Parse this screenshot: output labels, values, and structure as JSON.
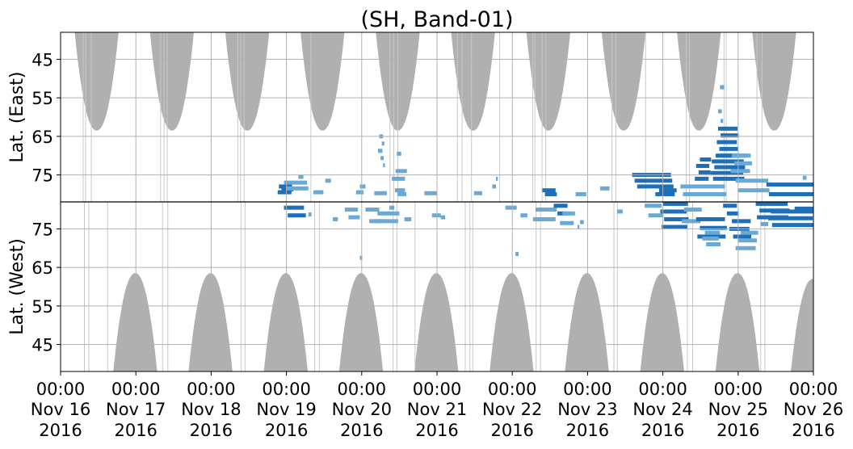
{
  "chart_data": {
    "type": "heatmap",
    "title": "(SH, Band-01)",
    "x_ticks": [
      {
        "time": "00:00",
        "date": "Nov 16",
        "year": "2016"
      },
      {
        "time": "00:00",
        "date": "Nov 17",
        "year": "2016"
      },
      {
        "time": "00:00",
        "date": "Nov 18",
        "year": "2016"
      },
      {
        "time": "00:00",
        "date": "Nov 19",
        "year": "2016"
      },
      {
        "time": "00:00",
        "date": "Nov 20",
        "year": "2016"
      },
      {
        "time": "00:00",
        "date": "Nov 21",
        "year": "2016"
      },
      {
        "time": "00:00",
        "date": "Nov 22",
        "year": "2016"
      },
      {
        "time": "00:00",
        "date": "Nov 23",
        "year": "2016"
      },
      {
        "time": "00:00",
        "date": "Nov 24",
        "year": "2016"
      },
      {
        "time": "00:00",
        "date": "Nov 25",
        "year": "2016"
      },
      {
        "time": "00:00",
        "date": "Nov 26",
        "year": "2016"
      }
    ],
    "xlim": [
      "2016-11-16 00:00",
      "2016-11-26 00:00"
    ],
    "east_panel": {
      "ylabel": "Lat. (East)",
      "yticks": [
        45,
        55,
        65,
        75
      ],
      "ylim": [
        38,
        82
      ]
    },
    "west_panel": {
      "ylabel": "Lat. (West)",
      "yticks": [
        75,
        65,
        55,
        45
      ],
      "ylim": [
        38,
        82
      ]
    },
    "night_shading_color": "#b0b0b0",
    "data_color_light": "#6aa8d6",
    "data_color_dark": "#1f6fb8",
    "gaps_east_hours": [
      7.2,
      8.0,
      9.8,
      31.9,
      33.0,
      34.0,
      56.5,
      57.4,
      58.5,
      79.8,
      105.0,
      106.2,
      107.5,
      126.5,
      128.0,
      131.0,
      140.0,
      150.5,
      151.2,
      153.5,
      154.7,
      175.8,
      177.0,
      186.5,
      199.5,
      200.5,
      211.5,
      212.2,
      222.0,
      223.6
    ],
    "gaps_west_hours": [
      7.6,
      9.0,
      15.0,
      32.5,
      34.2,
      57.5,
      58.8,
      81.0,
      82.5,
      106.0,
      107.2,
      113.0,
      129.0,
      130.5,
      131.4,
      151.6,
      153.0,
      176.4,
      177.5,
      199.8,
      201.5,
      223.2,
      224.5
    ],
    "night_east_cycles": [
      {
        "center_hour": 11.5,
        "halfwidth_hours": 7.0,
        "lat_min": 63.5
      },
      {
        "center_hour": 35.5,
        "halfwidth_hours": 7.0,
        "lat_min": 63.5
      },
      {
        "center_hour": 59.5,
        "halfwidth_hours": 7.0,
        "lat_min": 63.5
      },
      {
        "center_hour": 83.5,
        "halfwidth_hours": 7.0,
        "lat_min": 63.5
      },
      {
        "center_hour": 107.5,
        "halfwidth_hours": 7.0,
        "lat_min": 63.5
      },
      {
        "center_hour": 131.5,
        "halfwidth_hours": 7.0,
        "lat_min": 63.5
      },
      {
        "center_hour": 155.5,
        "halfwidth_hours": 7.0,
        "lat_min": 63.5
      },
      {
        "center_hour": 179.5,
        "halfwidth_hours": 7.0,
        "lat_min": 63.5
      },
      {
        "center_hour": 203.5,
        "halfwidth_hours": 7.0,
        "lat_min": 63.5
      },
      {
        "center_hour": 227.5,
        "halfwidth_hours": 7.0,
        "lat_min": 63.5
      }
    ],
    "night_west_cycles": [
      {
        "center_hour": 23.8,
        "halfwidth_hours": 7.0,
        "lat_min": 63.5
      },
      {
        "center_hour": 47.8,
        "halfwidth_hours": 7.0,
        "lat_min": 63.5
      },
      {
        "center_hour": 71.8,
        "halfwidth_hours": 7.0,
        "lat_min": 63.5
      },
      {
        "center_hour": 95.8,
        "halfwidth_hours": 7.0,
        "lat_min": 63.5
      },
      {
        "center_hour": 119.8,
        "halfwidth_hours": 7.0,
        "lat_min": 63.5
      },
      {
        "center_hour": 143.8,
        "halfwidth_hours": 7.0,
        "lat_min": 63.5
      },
      {
        "center_hour": 167.8,
        "halfwidth_hours": 7.0,
        "lat_min": 63.5
      },
      {
        "center_hour": 191.8,
        "halfwidth_hours": 7.0,
        "lat_min": 63.5
      },
      {
        "center_hour": 215.8,
        "halfwidth_hours": 7.0,
        "lat_min": 63.5
      },
      {
        "center_hour": 239.8,
        "halfwidth_hours": 7.0,
        "lat_min": 62.0
      }
    ],
    "clusters_east": [
      {
        "h0": 70.0,
        "h1": 74.0,
        "lat0": 79.5,
        "lat1": 78.0,
        "rows": 3,
        "dark": true
      },
      {
        "h0": 72.0,
        "h1": 79.0,
        "lat0": 78.5,
        "lat1": 77.0,
        "rows": 2,
        "dark": false
      },
      {
        "h0": 75.0,
        "h1": 77.0,
        "lat0": 76.0,
        "lat1": 75.0,
        "rows": 1,
        "dark": false
      },
      {
        "h0": 81.0,
        "h1": 84.0,
        "lat0": 80.0,
        "lat1": 79.0,
        "rows": 1,
        "dark": false
      },
      {
        "h0": 84.0,
        "h1": 86.0,
        "lat0": 77.0,
        "lat1": 76.0,
        "rows": 1,
        "dark": false
      },
      {
        "h0": 95.0,
        "h1": 97.0,
        "lat0": 79.5,
        "lat1": 78.0,
        "rows": 2,
        "dark": false
      },
      {
        "h0": 100.0,
        "h1": 104.0,
        "lat0": 80.0,
        "lat1": 79.5,
        "rows": 1,
        "dark": false
      },
      {
        "h0": 102.0,
        "h1": 103.0,
        "lat0": 72.5,
        "lat1": 65.0,
        "rows": 5,
        "dark": false
      },
      {
        "h0": 106.0,
        "h1": 110.0,
        "lat0": 76.0,
        "lat1": 74.0,
        "rows": 2,
        "dark": false
      },
      {
        "h0": 107.0,
        "h1": 110.0,
        "lat0": 80.0,
        "lat1": 79.0,
        "rows": 2,
        "dark": false
      },
      {
        "h0": 108.0,
        "h1": 109.0,
        "lat0": 70.0,
        "lat1": 69.0,
        "rows": 1,
        "dark": false
      },
      {
        "h0": 116.0,
        "h1": 120.0,
        "lat0": 80.0,
        "lat1": 79.5,
        "rows": 1,
        "dark": false
      },
      {
        "h0": 131.0,
        "h1": 134.0,
        "lat0": 80.0,
        "lat1": 79.5,
        "rows": 1,
        "dark": false
      },
      {
        "h0": 138.0,
        "h1": 139.0,
        "lat0": 78.0,
        "lat1": 76.0,
        "rows": 2,
        "dark": false
      },
      {
        "h0": 154.0,
        "h1": 158.0,
        "lat0": 80.0,
        "lat1": 79.0,
        "rows": 2,
        "dark": true
      },
      {
        "h0": 165.0,
        "h1": 168.0,
        "lat0": 80.5,
        "lat1": 79.5,
        "rows": 1,
        "dark": false
      },
      {
        "h0": 172.0,
        "h1": 175.0,
        "lat0": 79.0,
        "lat1": 78.0,
        "rows": 1,
        "dark": false
      },
      {
        "h0": 183.0,
        "h1": 195.0,
        "lat0": 78.0,
        "lat1": 75.0,
        "rows": 3,
        "dark": true
      },
      {
        "h0": 190.0,
        "h1": 196.0,
        "lat0": 80.0,
        "lat1": 79.0,
        "rows": 2,
        "dark": true
      },
      {
        "h0": 198.0,
        "h1": 212.0,
        "lat0": 80.0,
        "lat1": 78.0,
        "rows": 2,
        "dark": false
      },
      {
        "h0": 203.0,
        "h1": 207.0,
        "lat0": 76.0,
        "lat1": 71.0,
        "rows": 4,
        "dark": true
      },
      {
        "h0": 208.0,
        "h1": 218.0,
        "lat0": 76.0,
        "lat1": 70.0,
        "rows": 5,
        "dark": true
      },
      {
        "h0": 210.0,
        "h1": 216.0,
        "lat0": 70.0,
        "lat1": 63.0,
        "rows": 5,
        "dark": true
      },
      {
        "h0": 214.0,
        "h1": 220.0,
        "lat0": 74.0,
        "lat1": 70.0,
        "rows": 3,
        "dark": false
      },
      {
        "h0": 210.0,
        "h1": 211.0,
        "lat0": 61.0,
        "lat1": 58.5,
        "rows": 2,
        "dark": false
      },
      {
        "h0": 211.0,
        "h1": 212.0,
        "lat0": 53.0,
        "lat1": 51.5,
        "rows": 1,
        "dark": false
      },
      {
        "h0": 216.0,
        "h1": 226.0,
        "lat0": 79.0,
        "lat1": 76.5,
        "rows": 2,
        "dark": false
      },
      {
        "h0": 225.0,
        "h1": 240.0,
        "lat0": 80.0,
        "lat1": 77.5,
        "rows": 2,
        "dark": true
      },
      {
        "h0": 237.0,
        "h1": 238.0,
        "lat0": 76.5,
        "lat1": 75.0,
        "rows": 1,
        "dark": false
      }
    ],
    "clusters_west": [
      {
        "h0": 72.0,
        "h1": 78.0,
        "lat0": 80.5,
        "lat1": 78.5,
        "rows": 2,
        "dark": true
      },
      {
        "h0": 79.0,
        "h1": 80.0,
        "lat0": 79.5,
        "lat1": 78.0,
        "rows": 1,
        "dark": false
      },
      {
        "h0": 86.0,
        "h1": 88.0,
        "lat0": 78.0,
        "lat1": 77.0,
        "rows": 1,
        "dark": false
      },
      {
        "h0": 91.0,
        "h1": 95.0,
        "lat0": 80.0,
        "lat1": 78.0,
        "rows": 2,
        "dark": false
      },
      {
        "h0": 95.0,
        "h1": 96.0,
        "lat0": 68.0,
        "lat1": 67.0,
        "rows": 1,
        "dark": false
      },
      {
        "h0": 98.0,
        "h1": 102.0,
        "lat0": 80.0,
        "lat1": 77.0,
        "rows": 2,
        "dark": false
      },
      {
        "h0": 101.0,
        "h1": 108.0,
        "lat0": 79.0,
        "lat1": 77.0,
        "rows": 2,
        "dark": false
      },
      {
        "h0": 104.0,
        "h1": 106.0,
        "lat0": 81.0,
        "lat1": 80.0,
        "rows": 1,
        "dark": false
      },
      {
        "h0": 110.0,
        "h1": 112.0,
        "lat0": 78.0,
        "lat1": 77.0,
        "rows": 1,
        "dark": false
      },
      {
        "h0": 118.0,
        "h1": 121.0,
        "lat0": 79.0,
        "lat1": 78.0,
        "rows": 1,
        "dark": false
      },
      {
        "h0": 122.0,
        "h1": 123.0,
        "lat0": 78.5,
        "lat1": 77.5,
        "rows": 1,
        "dark": false
      },
      {
        "h0": 145.0,
        "h1": 146.0,
        "lat0": 69.0,
        "lat1": 68.0,
        "rows": 1,
        "dark": false
      },
      {
        "h0": 141.0,
        "h1": 145.0,
        "lat0": 81.0,
        "lat1": 80.0,
        "rows": 1,
        "dark": false
      },
      {
        "h0": 147.0,
        "h1": 149.0,
        "lat0": 79.0,
        "lat1": 78.0,
        "rows": 1,
        "dark": false
      },
      {
        "h0": 151.0,
        "h1": 158.0,
        "lat0": 80.0,
        "lat1": 77.5,
        "rows": 2,
        "dark": false
      },
      {
        "h0": 158.0,
        "h1": 162.0,
        "lat0": 81.0,
        "lat1": 79.0,
        "rows": 2,
        "dark": true
      },
      {
        "h0": 160.0,
        "h1": 164.0,
        "lat0": 79.0,
        "lat1": 76.5,
        "rows": 2,
        "dark": false
      },
      {
        "h0": 164.0,
        "h1": 165.0,
        "lat0": 76.0,
        "lat1": 75.0,
        "rows": 1,
        "dark": false
      },
      {
        "h0": 166.0,
        "h1": 167.0,
        "lat0": 77.5,
        "lat1": 76.0,
        "rows": 1,
        "dark": false
      },
      {
        "h0": 177.0,
        "h1": 179.0,
        "lat0": 80.0,
        "lat1": 79.0,
        "rows": 1,
        "dark": false
      },
      {
        "h0": 187.0,
        "h1": 192.0,
        "lat0": 81.0,
        "lat1": 78.5,
        "rows": 2,
        "dark": false
      },
      {
        "h0": 192.0,
        "h1": 200.0,
        "lat0": 81.5,
        "lat1": 75.5,
        "rows": 4,
        "dark": true
      },
      {
        "h0": 198.0,
        "h1": 204.0,
        "lat0": 80.0,
        "lat1": 77.0,
        "rows": 2,
        "dark": false
      },
      {
        "h0": 203.0,
        "h1": 212.0,
        "lat0": 77.5,
        "lat1": 73.0,
        "rows": 3,
        "dark": true
      },
      {
        "h0": 205.0,
        "h1": 210.0,
        "lat0": 74.0,
        "lat1": 71.0,
        "rows": 3,
        "dark": false
      },
      {
        "h0": 212.0,
        "h1": 216.0,
        "lat0": 81.0,
        "lat1": 79.0,
        "rows": 2,
        "dark": true
      },
      {
        "h0": 214.0,
        "h1": 220.0,
        "lat0": 77.0,
        "lat1": 73.0,
        "rows": 3,
        "dark": true
      },
      {
        "h0": 216.0,
        "h1": 222.0,
        "lat0": 74.0,
        "lat1": 70.0,
        "rows": 3,
        "dark": false
      },
      {
        "h0": 222.0,
        "h1": 232.0,
        "lat0": 81.5,
        "lat1": 78.0,
        "rows": 3,
        "dark": true
      },
      {
        "h0": 226.0,
        "h1": 240.0,
        "lat0": 79.5,
        "lat1": 76.0,
        "rows": 3,
        "dark": true
      },
      {
        "h0": 224.0,
        "h1": 226.0,
        "lat0": 77.0,
        "lat1": 75.5,
        "rows": 1,
        "dark": false
      },
      {
        "h0": 234.0,
        "h1": 240.0,
        "lat0": 81.0,
        "lat1": 79.5,
        "rows": 1,
        "dark": true
      }
    ]
  }
}
